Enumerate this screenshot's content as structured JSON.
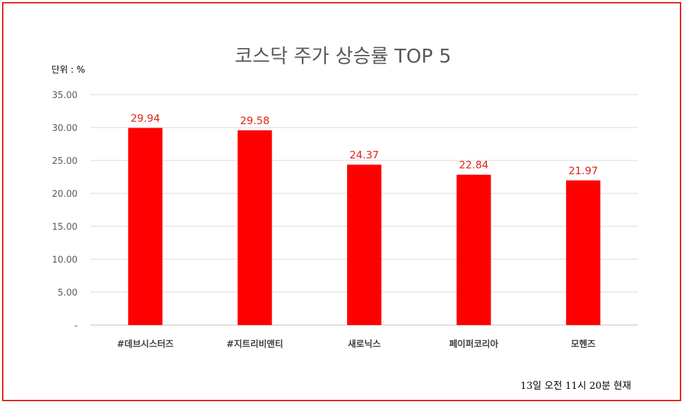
{
  "chart_data": {
    "type": "bar",
    "title": "코스닥 주가 상승률 TOP 5",
    "unit_label": "단위 : %",
    "categories": [
      "#데브시스터즈",
      "#지트리비앤티",
      "새로닉스",
      "페이퍼코리아",
      "모헨즈"
    ],
    "values": [
      29.94,
      29.58,
      24.37,
      22.84,
      21.97
    ],
    "data_labels": [
      "29.94",
      "29.58",
      "24.37",
      "22.84",
      "21.97"
    ],
    "ylim": [
      0,
      35
    ],
    "y_ticks": [
      0,
      5,
      10,
      15,
      20,
      25,
      30,
      35
    ],
    "y_tick_labels": [
      "-",
      "5.00",
      "10.00",
      "15.00",
      "20.00",
      "25.00",
      "30.00",
      "35.00"
    ],
    "grid": true,
    "bar_color": "#ff0000",
    "label_color": "#e2231a",
    "footnote": "13일  오전 11시 20분 현재"
  },
  "frame_color": "#e2231a"
}
